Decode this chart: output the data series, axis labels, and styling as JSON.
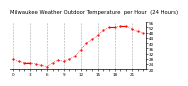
{
  "title": "Milwaukee Weather Outdoor Temperature  per Hour  (24 Hours)",
  "hours": [
    0,
    1,
    2,
    3,
    4,
    5,
    6,
    7,
    8,
    9,
    10,
    11,
    12,
    13,
    14,
    15,
    16,
    17,
    18,
    19,
    20,
    21,
    22,
    23
  ],
  "temps": [
    28,
    26,
    25,
    25,
    24,
    23,
    22,
    25,
    27,
    26,
    28,
    30,
    35,
    40,
    43,
    46,
    50,
    52,
    52,
    53,
    53,
    51,
    49,
    48
  ],
  "line_color": "#ff0000",
  "bg_color": "#ffffff",
  "grid_color": "#aaaaaa",
  "ylabel_color": "#000000",
  "ylim": [
    20,
    56
  ],
  "yticks": [
    20,
    24,
    28,
    32,
    36,
    40,
    44,
    48,
    52,
    56
  ],
  "title_fontsize": 3.8,
  "tick_fontsize": 3.0
}
